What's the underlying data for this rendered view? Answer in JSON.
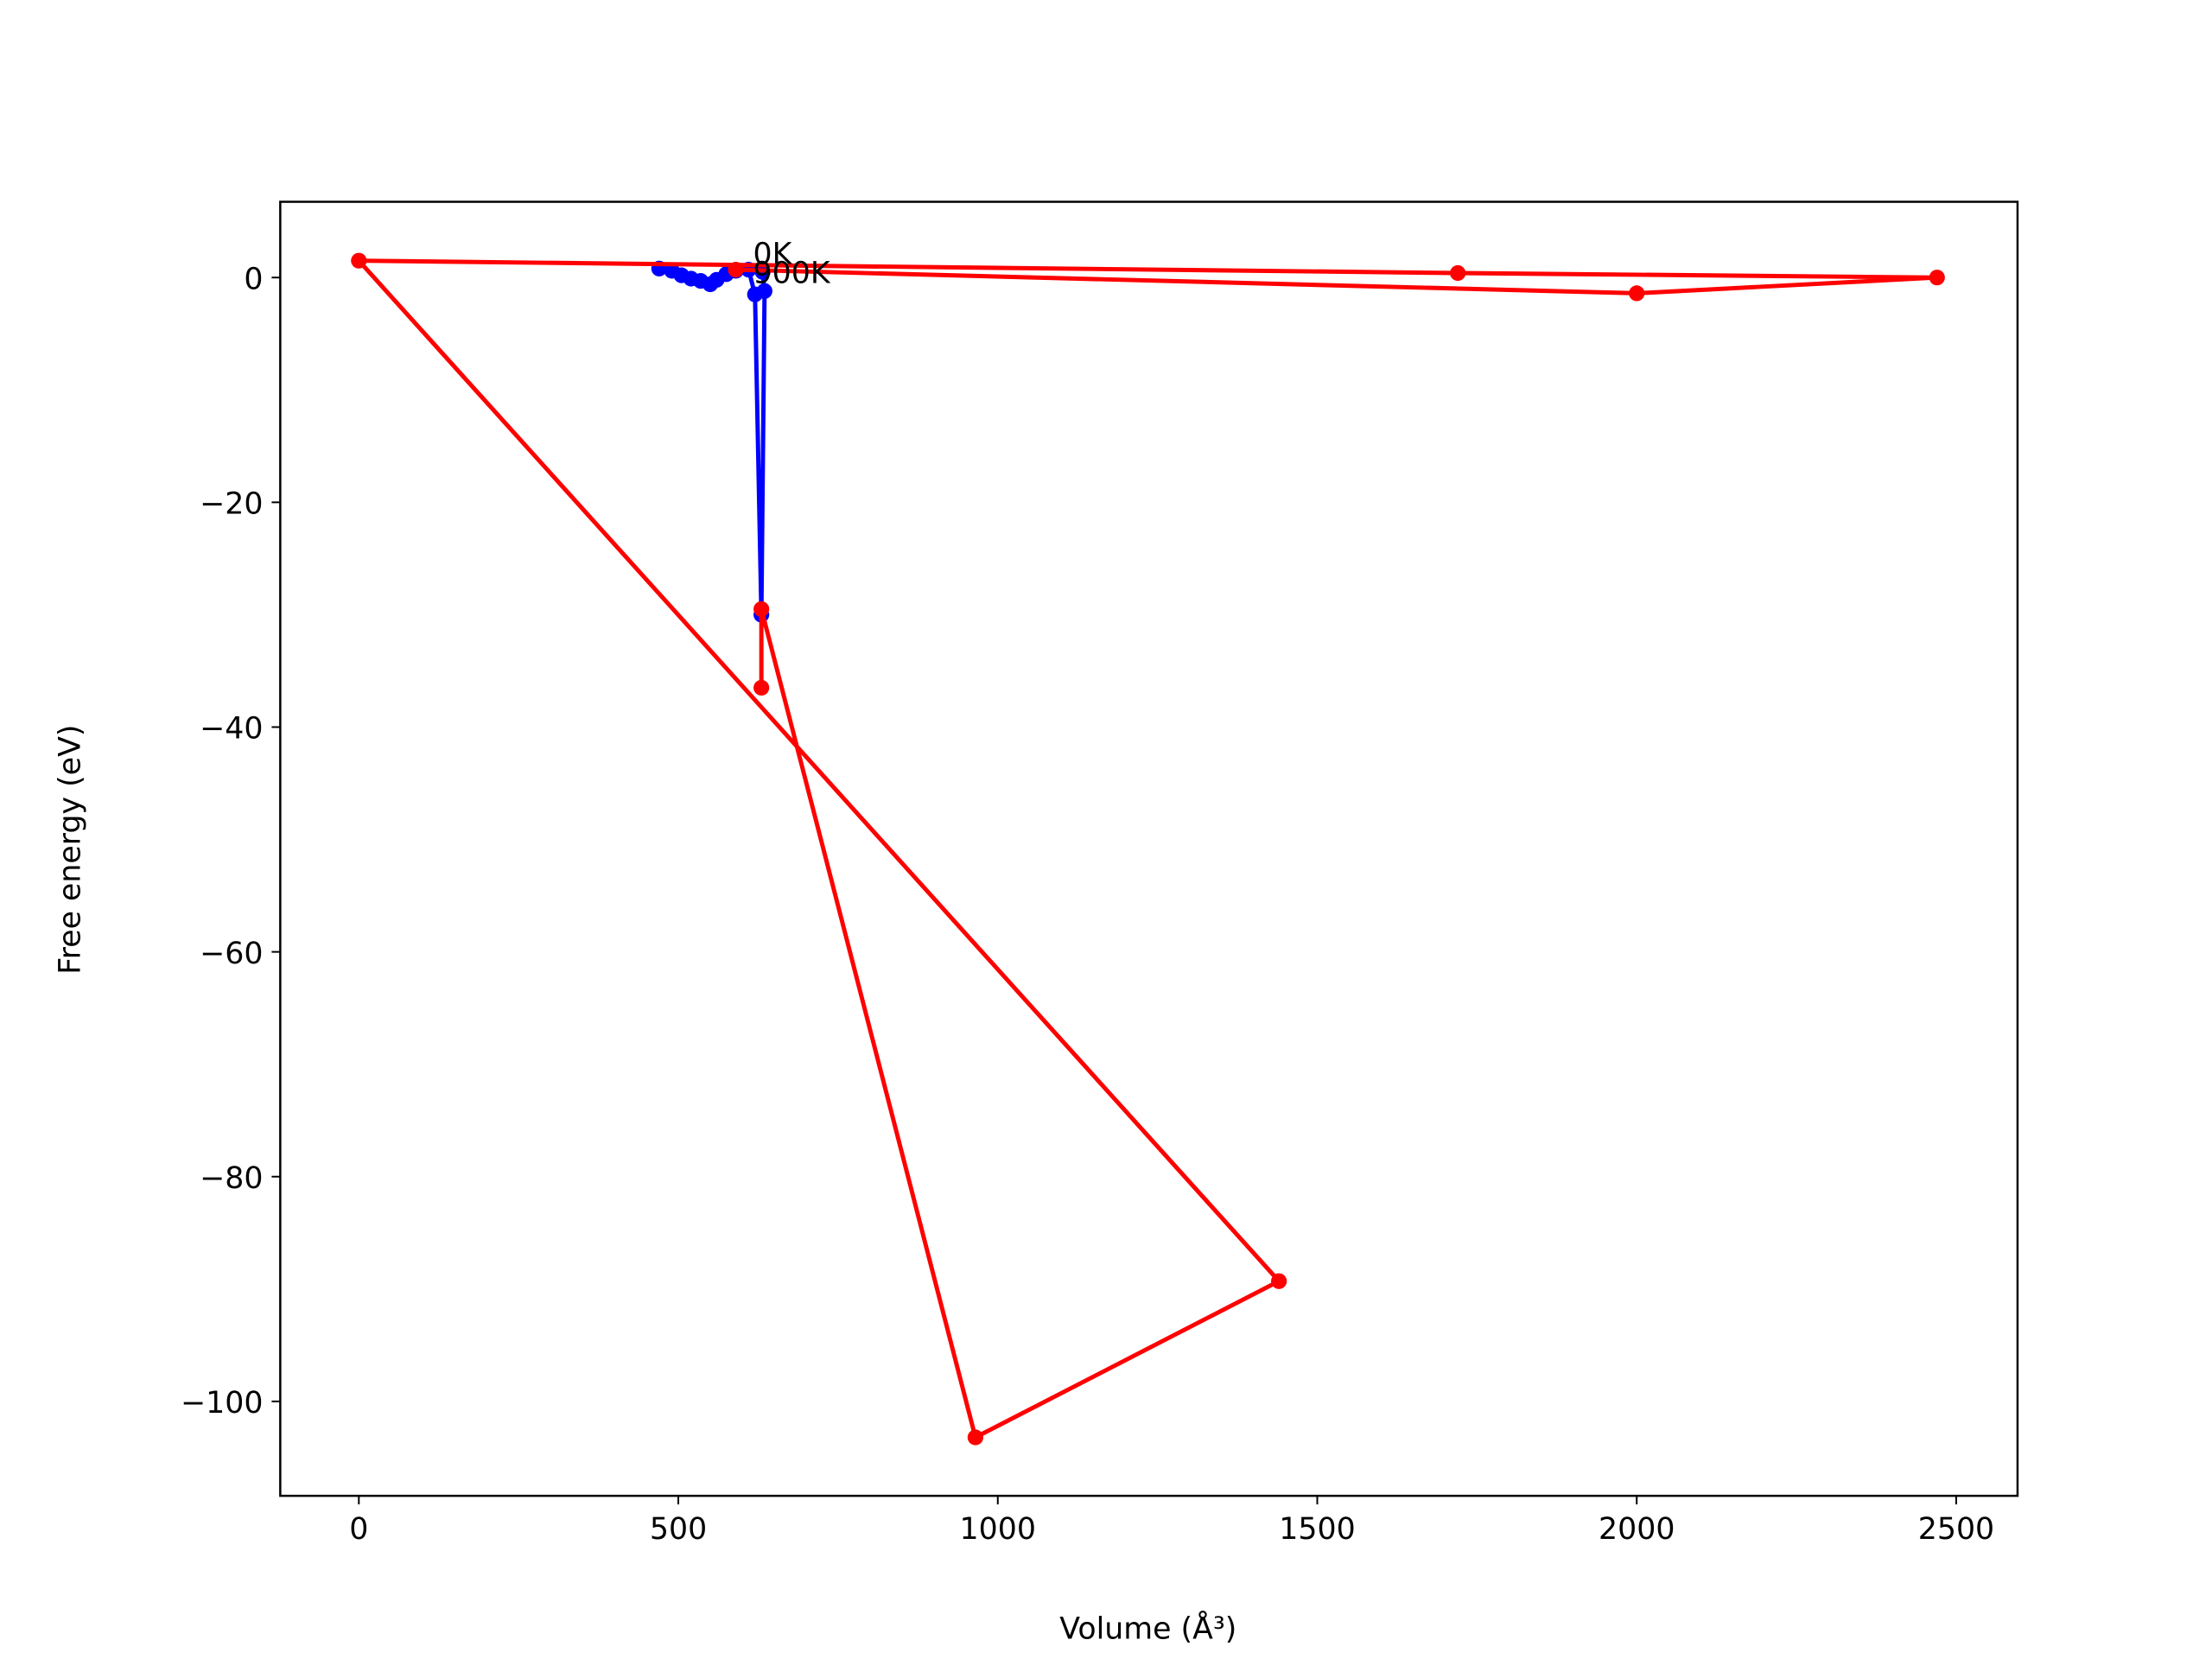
{
  "chart_data": {
    "type": "line",
    "xlabel": "Volume (Å³)",
    "ylabel": "Free energy (eV)",
    "xlim": [
      -123,
      2596
    ],
    "ylim": [
      -108.4,
      6.74
    ],
    "xticks": [
      0,
      500,
      1000,
      1500,
      2000,
      2500
    ],
    "yticks": [
      0,
      {
        "value": -20,
        "label": "−20"
      },
      {
        "value": -40,
        "label": "−40"
      },
      {
        "value": -60,
        "label": "−60"
      },
      {
        "value": -80,
        "label": "−80"
      },
      {
        "value": -100,
        "label": "−100"
      }
    ],
    "series": [
      {
        "color": "#0000ff",
        "x": [
          470,
          490,
          505,
          520,
          535,
          550,
          560,
          575,
          590,
          610,
          620,
          630,
          635,
          632
        ],
        "values": [
          0.8,
          0.6,
          0.2,
          -0.1,
          -0.3,
          -0.6,
          -0.2,
          0.3,
          0.6,
          0.7,
          -1.5,
          -30,
          -1.2,
          0.5
        ]
      },
      {
        "color": "#ff0000",
        "x": [
          630,
          630,
          965,
          1440,
          0,
          1720,
          2470,
          2000,
          590
        ],
        "values": [
          -36.5,
          -29.5,
          -103.2,
          -89.3,
          1.5,
          0.4,
          0,
          -1.4,
          0.7
        ]
      }
    ],
    "annotations": [
      {
        "text": "0K",
        "x": 617,
        "y": 1.2
      },
      {
        "text": "900K",
        "x": 617,
        "y": -0.5
      }
    ]
  }
}
